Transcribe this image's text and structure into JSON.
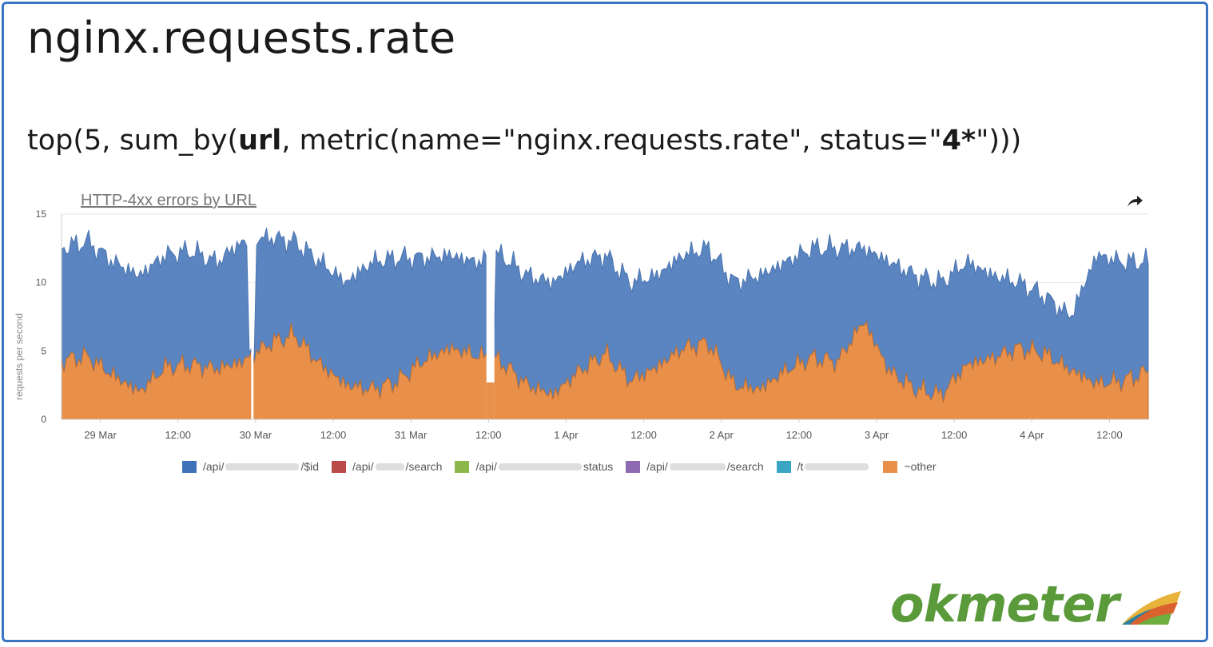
{
  "slide": {
    "title": "nginx.requests.rate",
    "query": {
      "p1": "top(5, sum_by(",
      "b1": "url",
      "p2": ", metric(name=\"nginx.requests.rate\", status=\"",
      "b2": "4*",
      "p3": "\")))"
    },
    "logo": "okmeter"
  },
  "chart_data": {
    "type": "area",
    "stacked": true,
    "title": "HTTP-4xx errors by URL",
    "xlabel": "",
    "ylabel": "requests per second",
    "ylim": [
      0,
      15
    ],
    "yticks": [
      0,
      5,
      10,
      15
    ],
    "xlim": [
      "28 Mar 18:00",
      "4 Apr 18:00"
    ],
    "xticks": [
      "29 Mar",
      "12:00",
      "30 Mar",
      "12:00",
      "31 Mar",
      "12:00",
      "1 Apr",
      "12:00",
      "2 Apr",
      "12:00",
      "3 Apr",
      "12:00",
      "4 Apr",
      "12:00"
    ],
    "x_hours": [
      6,
      18,
      30,
      42,
      54,
      66,
      78,
      90,
      102,
      114,
      126,
      138,
      150,
      162
    ],
    "grid": true,
    "legend_position": "bottom",
    "series": [
      {
        "name": "~other",
        "color": "#e8904a",
        "x_hours": [
          0,
          4,
          8,
          12,
          16,
          20,
          24,
          28,
          32,
          36,
          40,
          44,
          48,
          52,
          56,
          60,
          64,
          68,
          72,
          76,
          80,
          84,
          88,
          92,
          96,
          100,
          104,
          108,
          112,
          116,
          120,
          124,
          128,
          132,
          136,
          140,
          144,
          148,
          152,
          156,
          160,
          164,
          168
        ],
        "values": [
          4.3,
          4.6,
          3.2,
          2.0,
          3.8,
          4.0,
          3.7,
          4.2,
          5.5,
          6.2,
          4.0,
          2.5,
          2.2,
          2.8,
          4.3,
          5.2,
          4.7,
          4.2,
          2.5,
          1.8,
          3.5,
          4.8,
          2.8,
          3.8,
          5.2,
          5.6,
          2.5,
          2.2,
          3.6,
          4.5,
          4.2,
          7.2,
          3.5,
          2.2,
          1.8,
          4.0,
          4.5,
          5.2,
          4.8,
          3.6,
          2.6,
          2.8,
          3.5
        ]
      },
      {
        "name": "/api/…/$id",
        "color": "#5b85c0",
        "x_hours": [
          0,
          4,
          8,
          12,
          16,
          20,
          24,
          28,
          32,
          36,
          40,
          44,
          48,
          52,
          56,
          60,
          64,
          68,
          72,
          76,
          80,
          84,
          88,
          92,
          96,
          100,
          104,
          108,
          112,
          116,
          120,
          124,
          128,
          132,
          136,
          140,
          144,
          148,
          152,
          156,
          160,
          164,
          168
        ],
        "values": [
          12.5,
          13.0,
          11.5,
          10.5,
          12.0,
          12.3,
          11.5,
          13.0,
          13.3,
          13.0,
          11.5,
          10.0,
          11.5,
          11.8,
          11.8,
          12.0,
          11.5,
          12.0,
          10.5,
          10.0,
          11.5,
          12.0,
          10.0,
          10.5,
          12.0,
          12.5,
          10.0,
          10.5,
          11.5,
          12.5,
          12.5,
          12.5,
          11.5,
          10.5,
          10.0,
          11.5,
          10.5,
          10.0,
          9.0,
          7.5,
          12.0,
          11.5,
          11.5
        ]
      },
      {
        "name": "/api/…/search",
        "color": "#b94a48"
      },
      {
        "name": "/api/…status",
        "color": "#8cb84a"
      },
      {
        "name": "/api/…/search",
        "color": "#8e6ab3"
      },
      {
        "name": "/t…",
        "color": "#3aa6c4"
      }
    ],
    "gaps_hours": [
      29.5,
      66.3
    ]
  },
  "legend": [
    {
      "pre": "/api/",
      "mid": 92,
      "post": "/$id",
      "color": "#3f72b8"
    },
    {
      "pre": "/api/",
      "mid": 36,
      "post": "/search",
      "color": "#b94a48"
    },
    {
      "pre": "/api/",
      "mid": 104,
      "post": "status",
      "color": "#8cb84a"
    },
    {
      "pre": "/api/",
      "mid": 70,
      "post": "/search",
      "color": "#8e6ab3"
    },
    {
      "pre": "/t",
      "mid": 80,
      "post": "",
      "color": "#3aa6c4"
    },
    {
      "pre": "~other",
      "mid": 0,
      "post": "",
      "color": "#e8904a"
    }
  ]
}
